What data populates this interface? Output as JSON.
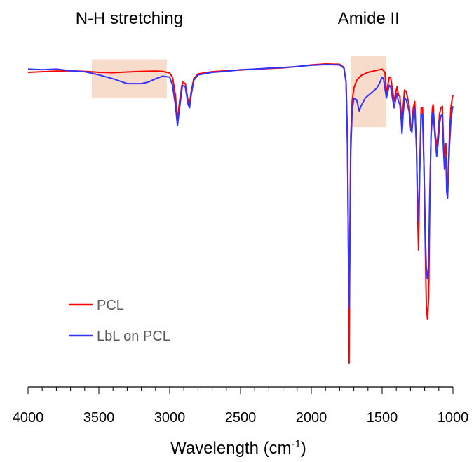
{
  "chart_data": {
    "type": "line",
    "title": "",
    "xlabel": "Wavelength (cm",
    "xlabel_sup": "-1",
    "xlabel_close": ")",
    "ylabel": "",
    "xlim": [
      4000,
      1000
    ],
    "x_reversed": true,
    "ylim": [
      0,
      100
    ],
    "grid": false,
    "y_axis_shown": false,
    "x_ticks": [
      4000,
      3500,
      3000,
      2500,
      2000,
      1500,
      1000
    ],
    "x_tick_labels": [
      "4000",
      "3500",
      "3000",
      "2500",
      "2000",
      "1500",
      "1000"
    ],
    "x_minor_step": 100,
    "legend_position": "bottom-left",
    "annotations": [
      {
        "text": "N-H stretching",
        "x_range": [
          3550,
          3020
        ],
        "y_range": [
          87,
          99
        ],
        "fill": "#f8dccb"
      },
      {
        "text": "Amide II",
        "x_range": [
          1720,
          1470
        ],
        "y_range": [
          78,
          100
        ],
        "fill": "#f8dccb"
      }
    ],
    "series": [
      {
        "name": "PCL",
        "color": "#ff0000",
        "points": [
          [
            4000,
            95.0
          ],
          [
            3900,
            95.2
          ],
          [
            3800,
            95.4
          ],
          [
            3700,
            95.5
          ],
          [
            3600,
            95.3
          ],
          [
            3500,
            95.0
          ],
          [
            3400,
            94.9
          ],
          [
            3300,
            95.1
          ],
          [
            3200,
            95.3
          ],
          [
            3100,
            95.4
          ],
          [
            3050,
            95.3
          ],
          [
            3000,
            94.8
          ],
          [
            2980,
            93.5
          ],
          [
            2960,
            88.0
          ],
          [
            2945,
            80.0
          ],
          [
            2930,
            86.0
          ],
          [
            2910,
            92.0
          ],
          [
            2890,
            91.5
          ],
          [
            2870,
            86.0
          ],
          [
            2860,
            85.2
          ],
          [
            2850,
            88.5
          ],
          [
            2830,
            93.0
          ],
          [
            2800,
            94.5
          ],
          [
            2700,
            95.2
          ],
          [
            2600,
            95.5
          ],
          [
            2500,
            95.7
          ],
          [
            2400,
            96.0
          ],
          [
            2300,
            96.2
          ],
          [
            2200,
            96.4
          ],
          [
            2100,
            96.8
          ],
          [
            2000,
            97.3
          ],
          [
            1900,
            97.6
          ],
          [
            1800,
            97.5
          ],
          [
            1770,
            96.5
          ],
          [
            1755,
            92.0
          ],
          [
            1745,
            75.0
          ],
          [
            1738,
            40.0
          ],
          [
            1733,
            5.0
          ],
          [
            1728,
            40.0
          ],
          [
            1722,
            75.0
          ],
          [
            1712,
            86.0
          ],
          [
            1700,
            90.0
          ],
          [
            1680,
            92.5
          ],
          [
            1650,
            94.0
          ],
          [
            1600,
            95.0
          ],
          [
            1550,
            95.5
          ],
          [
            1500,
            96.0
          ],
          [
            1480,
            95.0
          ],
          [
            1470,
            88.0
          ],
          [
            1460,
            91.0
          ],
          [
            1450,
            93.5
          ],
          [
            1440,
            93.5
          ],
          [
            1425,
            89.0
          ],
          [
            1415,
            86.0
          ],
          [
            1405,
            88.5
          ],
          [
            1395,
            90.5
          ],
          [
            1385,
            88.0
          ],
          [
            1375,
            87.5
          ],
          [
            1365,
            82.0
          ],
          [
            1360,
            77.0
          ],
          [
            1352,
            84.0
          ],
          [
            1342,
            89.5
          ],
          [
            1330,
            89.0
          ],
          [
            1310,
            85.0
          ],
          [
            1297,
            78.0
          ],
          [
            1290,
            77.5
          ],
          [
            1280,
            84.0
          ],
          [
            1270,
            86.0
          ],
          [
            1258,
            72.0
          ],
          [
            1250,
            52.0
          ],
          [
            1243,
            40.0
          ],
          [
            1235,
            64.0
          ],
          [
            1225,
            84.0
          ],
          [
            1215,
            84.0
          ],
          [
            1205,
            66.0
          ],
          [
            1195,
            40.0
          ],
          [
            1188,
            23.0
          ],
          [
            1180,
            18.5
          ],
          [
            1172,
            25.0
          ],
          [
            1165,
            50.0
          ],
          [
            1155,
            76.0
          ],
          [
            1145,
            84.0
          ],
          [
            1140,
            85.0
          ],
          [
            1130,
            78.0
          ],
          [
            1115,
            72.0
          ],
          [
            1105,
            76.0
          ],
          [
            1095,
            82.0
          ],
          [
            1085,
            84.0
          ],
          [
            1075,
            84.5
          ],
          [
            1068,
            74.0
          ],
          [
            1060,
            69.0
          ],
          [
            1050,
            73.0
          ],
          [
            1044,
            62.0
          ],
          [
            1038,
            58.5
          ],
          [
            1033,
            65.0
          ],
          [
            1025,
            75.0
          ],
          [
            1015,
            84.0
          ],
          [
            1005,
            87.0
          ],
          [
            1000,
            88.0
          ]
        ]
      },
      {
        "name": "LbL on PCL",
        "color": "#3333ff",
        "points": [
          [
            4000,
            96.0
          ],
          [
            3900,
            95.8
          ],
          [
            3800,
            96.0
          ],
          [
            3700,
            95.5
          ],
          [
            3600,
            95.2
          ],
          [
            3500,
            94.2
          ],
          [
            3400,
            93.0
          ],
          [
            3300,
            91.5
          ],
          [
            3200,
            91.5
          ],
          [
            3150,
            92.0
          ],
          [
            3100,
            93.0
          ],
          [
            3050,
            93.8
          ],
          [
            3000,
            93.5
          ],
          [
            2980,
            91.0
          ],
          [
            2960,
            85.0
          ],
          [
            2945,
            78.5
          ],
          [
            2930,
            84.0
          ],
          [
            2910,
            91.0
          ],
          [
            2890,
            90.5
          ],
          [
            2870,
            85.0
          ],
          [
            2860,
            84.0
          ],
          [
            2850,
            87.5
          ],
          [
            2830,
            92.5
          ],
          [
            2800,
            94.2
          ],
          [
            2700,
            95.0
          ],
          [
            2600,
            95.3
          ],
          [
            2500,
            95.8
          ],
          [
            2400,
            96.0
          ],
          [
            2300,
            96.3
          ],
          [
            2200,
            96.5
          ],
          [
            2100,
            96.8
          ],
          [
            2000,
            97.2
          ],
          [
            1900,
            97.4
          ],
          [
            1800,
            97.3
          ],
          [
            1770,
            96.3
          ],
          [
            1755,
            92.0
          ],
          [
            1745,
            72.0
          ],
          [
            1738,
            40.0
          ],
          [
            1733,
            22.0
          ],
          [
            1728,
            40.0
          ],
          [
            1722,
            70.0
          ],
          [
            1712,
            83.0
          ],
          [
            1700,
            87.0
          ],
          [
            1680,
            86.5
          ],
          [
            1662,
            83.0
          ],
          [
            1650,
            84.5
          ],
          [
            1620,
            87.0
          ],
          [
            1580,
            88.5
          ],
          [
            1540,
            90.0
          ],
          [
            1520,
            91.5
          ],
          [
            1500,
            93.5
          ],
          [
            1490,
            93.0
          ],
          [
            1480,
            90.0
          ],
          [
            1470,
            87.0
          ],
          [
            1460,
            89.0
          ],
          [
            1450,
            91.0
          ],
          [
            1440,
            90.5
          ],
          [
            1425,
            86.5
          ],
          [
            1415,
            84.0
          ],
          [
            1405,
            86.5
          ],
          [
            1395,
            88.5
          ],
          [
            1385,
            86.0
          ],
          [
            1375,
            85.0
          ],
          [
            1365,
            80.0
          ],
          [
            1360,
            76.0
          ],
          [
            1352,
            82.0
          ],
          [
            1342,
            87.0
          ],
          [
            1330,
            86.5
          ],
          [
            1310,
            83.0
          ],
          [
            1297,
            77.0
          ],
          [
            1290,
            76.5
          ],
          [
            1280,
            82.0
          ],
          [
            1270,
            84.0
          ],
          [
            1258,
            72.0
          ],
          [
            1250,
            56.0
          ],
          [
            1243,
            49.0
          ],
          [
            1235,
            64.0
          ],
          [
            1225,
            82.0
          ],
          [
            1215,
            82.0
          ],
          [
            1205,
            66.0
          ],
          [
            1195,
            45.0
          ],
          [
            1188,
            34.0
          ],
          [
            1180,
            31.0
          ],
          [
            1172,
            36.0
          ],
          [
            1165,
            55.0
          ],
          [
            1155,
            75.0
          ],
          [
            1145,
            82.0
          ],
          [
            1140,
            82.5
          ],
          [
            1130,
            77.0
          ],
          [
            1115,
            69.0
          ],
          [
            1105,
            73.0
          ],
          [
            1095,
            79.0
          ],
          [
            1085,
            81.5
          ],
          [
            1075,
            82.0
          ],
          [
            1068,
            72.0
          ],
          [
            1060,
            65.0
          ],
          [
            1050,
            69.0
          ],
          [
            1044,
            58.0
          ],
          [
            1038,
            56.0
          ],
          [
            1033,
            62.0
          ],
          [
            1025,
            72.0
          ],
          [
            1015,
            80.0
          ],
          [
            1005,
            83.5
          ],
          [
            1000,
            84.5
          ]
        ]
      }
    ]
  }
}
